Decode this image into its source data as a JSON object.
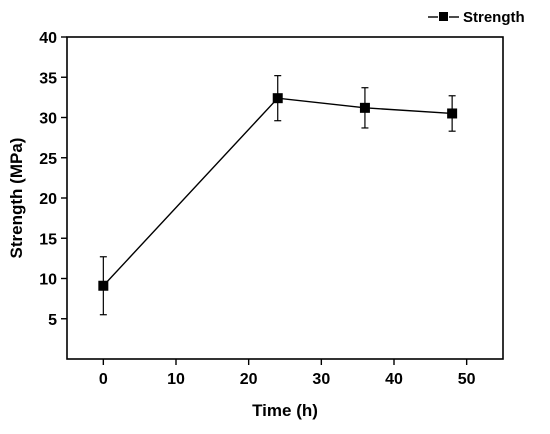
{
  "chart_data": {
    "type": "line",
    "title": "",
    "xlabel": "Time (h)",
    "ylabel": "Strength (MPa)",
    "xlim": [
      -5,
      55
    ],
    "ylim": [
      0,
      40
    ],
    "x_ticks": [
      0,
      10,
      20,
      30,
      40,
      50
    ],
    "y_ticks": [
      5,
      10,
      15,
      20,
      25,
      30,
      35,
      40
    ],
    "x_tick_labels": [
      "0",
      "10",
      "20",
      "30",
      "40",
      "50"
    ],
    "y_tick_labels": [
      "5",
      "10",
      "15",
      "20",
      "25",
      "30",
      "35",
      "40"
    ],
    "grid": false,
    "legend_position": "top-right",
    "series": [
      {
        "name": "Strength",
        "color": "#000000",
        "marker": "square",
        "x": [
          0,
          24,
          36,
          48
        ],
        "y": [
          9.1,
          32.4,
          31.2,
          30.5
        ],
        "error": [
          3.6,
          2.8,
          2.5,
          2.2
        ]
      }
    ]
  }
}
